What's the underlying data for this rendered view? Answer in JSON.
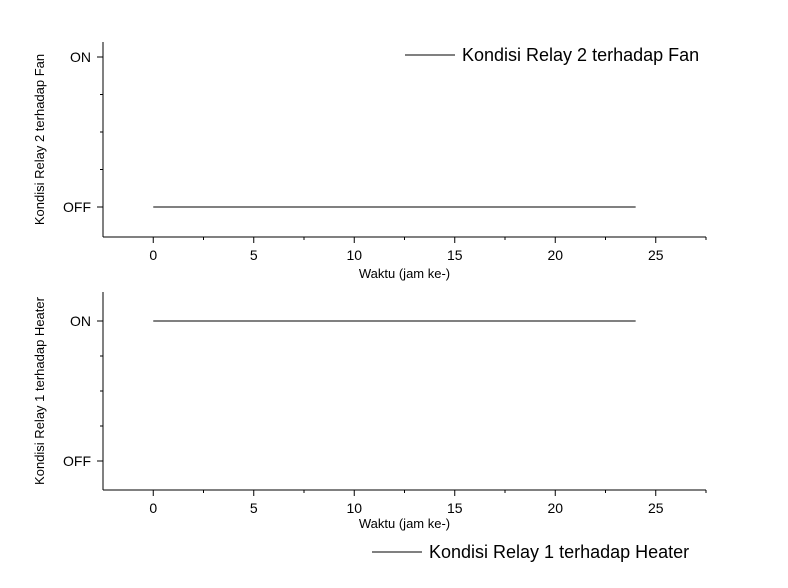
{
  "chart_data": [
    {
      "type": "line",
      "x": [
        0,
        24
      ],
      "series": [
        {
          "name": "Kondisi Relay 2 terhadap Fan",
          "values": [
            0,
            0
          ],
          "color": "#000000"
        }
      ],
      "xlabel": "Waktu (jam ke-)",
      "ylabel": "Kondisi Relay 2 terhadap Fan",
      "xlim": [
        -2.5,
        27.5
      ],
      "ylim": [
        -0.2,
        1.1
      ],
      "x_ticks": [
        0,
        5,
        10,
        15,
        20,
        25
      ],
      "y_ticks": [
        0,
        1
      ],
      "y_tick_labels": [
        "OFF",
        "ON"
      ],
      "grid": false,
      "legend_position": "top-right"
    },
    {
      "type": "line",
      "x": [
        0,
        24
      ],
      "series": [
        {
          "name": "Kondisi Relay 1 terhadap Heater",
          "values": [
            1,
            1
          ],
          "color": "#000000"
        }
      ],
      "xlabel": "Waktu (jam ke-)",
      "ylabel": "Kondisi Relay 1 terhadap Heater",
      "xlim": [
        -2.5,
        27.5
      ],
      "ylim": [
        -0.2,
        1.1
      ],
      "x_ticks": [
        0,
        5,
        10,
        15,
        20,
        25
      ],
      "y_ticks": [
        0,
        1
      ],
      "y_tick_labels": [
        "OFF",
        "ON"
      ],
      "grid": false,
      "legend_position": "bottom-right"
    }
  ]
}
